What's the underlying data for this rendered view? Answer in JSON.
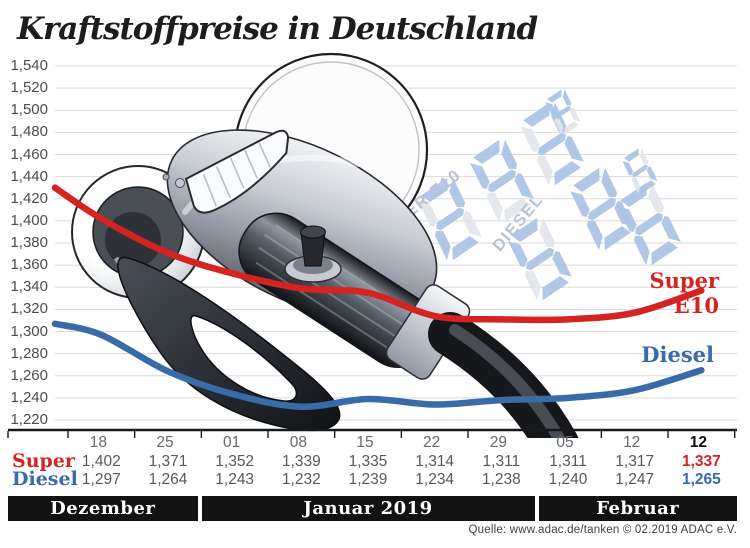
{
  "title": "Kraftstoffpreise in Deutschland",
  "source_line": "Quelle: www.adac.de/tanken   © 02.2019   ADAC e.V.",
  "colors": {
    "super_red": "#d42320",
    "diesel_blue": "#3a6ba9",
    "grid": "#d8dade",
    "axis": "#17181a",
    "tick_text": "#66696d",
    "month_bar_bg": "#121212",
    "ghost_on": "#a9c3e3",
    "ghost_off": "#e2e6ea",
    "ghost_label": "#b7c3d2"
  },
  "chart_data": {
    "type": "line",
    "title": "Kraftstoffpreise in Deutschland",
    "ylim": [
      1220,
      1540
    ],
    "y_step": 20,
    "y_tick_labels": [
      "1,540",
      "1,520",
      "1,500",
      "1,480",
      "1,460",
      "1,440",
      "1,420",
      "1,400",
      "1,380",
      "1,360",
      "1,340",
      "1,320",
      "1,300",
      "1,280",
      "1,260",
      "1,240",
      "1,220"
    ],
    "x_tick_labels": [
      "18",
      "25",
      "01",
      "08",
      "15",
      "22",
      "29",
      "05",
      "12",
      "12"
    ],
    "last_x_tick_bold": true,
    "months": [
      {
        "label": "Dezember",
        "columns": [
          "18",
          "25"
        ]
      },
      {
        "label": "Januar 2019",
        "columns": [
          "01",
          "08",
          "15",
          "22",
          "29"
        ]
      },
      {
        "label": "Februar",
        "columns": [
          "05",
          "12",
          "12"
        ]
      }
    ],
    "grid": true,
    "legend_position": "right-end-of-lines",
    "series": [
      {
        "name": "Super E10",
        "row_label": "Super",
        "color": "#d42320",
        "lead_in_value": 1430,
        "values": [
          1402,
          1371,
          1352,
          1339,
          1335,
          1314,
          1311,
          1311,
          1317,
          1337
        ]
      },
      {
        "name": "Diesel",
        "row_label": "Diesel",
        "color": "#3a6ba9",
        "lead_in_value": 1307,
        "values": [
          1297,
          1264,
          1243,
          1232,
          1239,
          1234,
          1238,
          1240,
          1247,
          1265
        ]
      }
    ]
  },
  "decor": {
    "price_displays": [
      {
        "label": "SUPER E10",
        "digits": [
          {
            "on": "ABGDE"
          },
          {
            "on": "FABGC"
          },
          {
            "on": "ABCGD"
          },
          {
            "on": "ABGF"
          }
        ]
      },
      {
        "label": "DIESEL",
        "digits": [
          {
            "on": "AFGCD"
          },
          {
            "on": "ABCDEFG"
          },
          {
            "on": "AFGEDC"
          },
          {
            "on": "AFGCD"
          }
        ]
      }
    ]
  }
}
